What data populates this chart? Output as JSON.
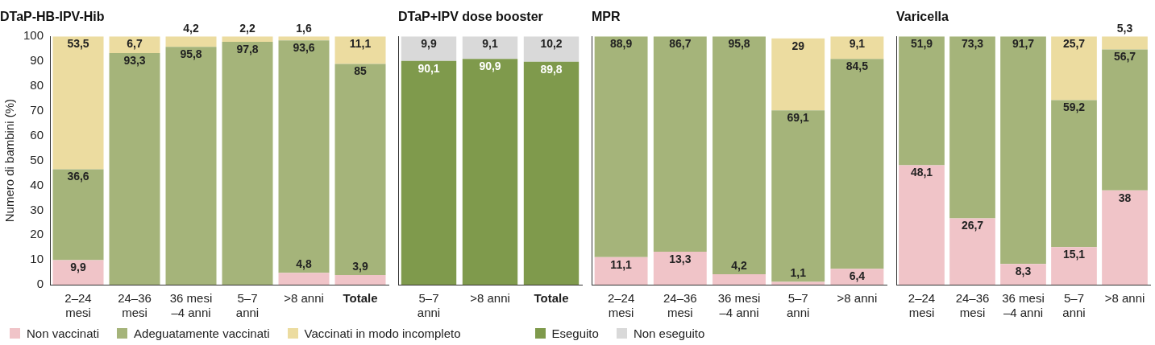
{
  "chart_data": [
    {
      "type": "bar",
      "title": "DTaP-HB-IPV-Hib",
      "ylabel": "Numero di bambini (%)",
      "stacked": true,
      "grid": false,
      "legend": "bottom",
      "categories": [
        "2–24\nmesi",
        "24–36\nmesi",
        "36 mesi\n–4 anni",
        "5–7\nanni",
        ">8 anni",
        "Totale"
      ],
      "ylim": [
        0,
        100
      ],
      "yticks": [
        0,
        10,
        20,
        30,
        40,
        50,
        60,
        70,
        80,
        90,
        100
      ],
      "series": [
        {
          "name": "Non vaccinati",
          "color": "#f0c4c8",
          "values": [
            9.9,
            null,
            null,
            null,
            4.8,
            3.9
          ],
          "value_labels": [
            "9,9",
            null,
            null,
            null,
            "4,8",
            "3,9"
          ]
        },
        {
          "name": "Adeguatamente vaccinati",
          "color": "#a5b47a",
          "values": [
            36.6,
            93.3,
            95.8,
            97.8,
            93.6,
            85
          ],
          "value_labels": [
            "36,6",
            "93,3",
            "95,8",
            "97,8",
            "93,6",
            "85"
          ]
        },
        {
          "name": "Vaccinati in modo incompleto",
          "color": "#ecdca0",
          "values": [
            53.5,
            6.7,
            4.2,
            2.2,
            1.6,
            11.1
          ],
          "value_labels": [
            "53,5",
            "6,7",
            "4,2",
            "2,2",
            "1,6",
            "11,1"
          ]
        }
      ]
    },
    {
      "type": "bar",
      "title": "DTaP+IPV dose booster",
      "stacked": true,
      "grid": false,
      "legend": "bottom",
      "tick_labels": "x",
      "categories": [
        "5–7\nanni",
        ">8 anni",
        "Totale"
      ],
      "ylim": [
        0,
        100
      ],
      "yticks": [
        0,
        10,
        20,
        30,
        40,
        50,
        60,
        70,
        80,
        90,
        100
      ],
      "series": [
        {
          "name": "Eseguito",
          "color": "#7f9a4c",
          "values": [
            90.1,
            90.9,
            89.8
          ],
          "value_labels": [
            "90,1",
            "90,9",
            "89,8"
          ]
        },
        {
          "name": "Non eseguito",
          "color": "#d9d9d9",
          "values": [
            9.9,
            9.1,
            10.2
          ],
          "value_labels": [
            "9,9",
            "9,1",
            "10,2"
          ]
        }
      ]
    },
    {
      "type": "bar",
      "title": "MPR",
      "stacked": true,
      "grid": false,
      "tick_labels": "x",
      "categories": [
        "2–24\nmesi",
        "24–36\nmesi",
        "36 mesi\n–4 anni",
        "5–7\nanni",
        ">8 anni"
      ],
      "ylim": [
        0,
        100
      ],
      "yticks": [
        0,
        10,
        20,
        30,
        40,
        50,
        60,
        70,
        80,
        90,
        100
      ],
      "series": [
        {
          "color": "#f0c4c8",
          "values": [
            11.1,
            13.3,
            4.2,
            1.1,
            6.4
          ],
          "value_labels": [
            "11,1",
            "13,3",
            "4,2",
            "1,1",
            "6,4"
          ]
        },
        {
          "color": "#a5b47a",
          "values": [
            88.9,
            86.7,
            95.8,
            69.1,
            84.5
          ],
          "value_labels": [
            "88,9",
            "86,7",
            "95,8",
            "69,1",
            "84,5"
          ]
        },
        {
          "color": "#ecdca0",
          "values": [
            null,
            null,
            null,
            29,
            9.1
          ],
          "value_labels": [
            null,
            null,
            null,
            "29",
            "9,1"
          ]
        }
      ]
    },
    {
      "type": "bar",
      "title": "Varicella",
      "stacked": true,
      "grid": false,
      "tick_labels": "x",
      "categories": [
        "2–24\nmesi",
        "24–36\nmesi",
        "36 mesi\n–4 anni",
        "5–7\nanni",
        ">8 anni"
      ],
      "ylim": [
        0,
        100
      ],
      "yticks": [
        0,
        10,
        20,
        30,
        40,
        50,
        60,
        70,
        80,
        90,
        100
      ],
      "series": [
        {
          "color": "#f0c4c8",
          "values": [
            48.1,
            26.7,
            8.3,
            15.1,
            38
          ],
          "value_labels": [
            "48,1",
            "26,7",
            "8,3",
            "15,1",
            "38"
          ]
        },
        {
          "color": "#a5b47a",
          "values": [
            51.9,
            73.3,
            91.7,
            59.2,
            56.7
          ],
          "value_labels": [
            "51,9",
            "73,3",
            "91,7",
            "59,2",
            "56,7"
          ]
        },
        {
          "color": "#ecdca0",
          "values": [
            null,
            null,
            null,
            25.7,
            5.3
          ],
          "value_labels": [
            null,
            null,
            null,
            "25,7",
            "5,3"
          ]
        }
      ]
    }
  ]
}
